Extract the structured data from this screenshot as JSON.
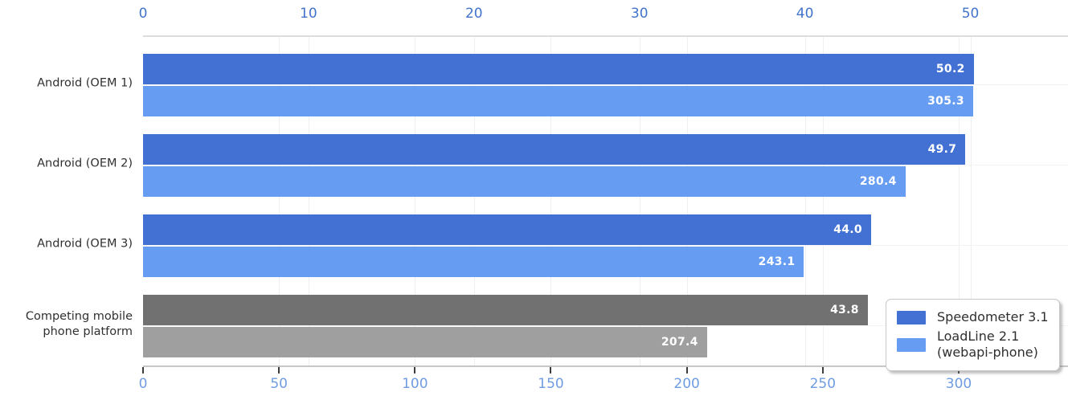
{
  "chart_data": {
    "type": "bar",
    "orientation": "horizontal",
    "title": "",
    "grid": true,
    "legend_position": "lower right",
    "categories": [
      "Android (OEM 1)",
      "Android (OEM 2)",
      "Android (OEM 3)",
      "Competing mobile\nphone platform"
    ],
    "series": [
      {
        "name": "Speedometer 3.1",
        "legend_label": "Speedometer 3.1",
        "axis": "top",
        "values": [
          50.2,
          49.7,
          44.0,
          43.8
        ],
        "value_labels": [
          "50.2",
          "49.7",
          "44.0",
          "43.8"
        ],
        "bar_colors": [
          "#4271d3",
          "#4271d3",
          "#4271d3",
          "#717171"
        ],
        "legend_color": "#4271d3"
      },
      {
        "name": "LoadLine 2.1 (webapi-phone)",
        "legend_label": "LoadLine 2.1\n(webapi-phone)",
        "axis": "bottom",
        "values": [
          305.3,
          280.4,
          243.1,
          207.4
        ],
        "value_labels": [
          "305.3",
          "280.4",
          "243.1",
          "207.4"
        ],
        "bar_colors": [
          "#669cf1",
          "#669cf1",
          "#669cf1",
          "#9f9f9f"
        ],
        "legend_color": "#669cf1"
      }
    ],
    "axes": {
      "top": {
        "ticks": [
          0,
          10,
          20,
          30,
          40,
          50
        ],
        "range": [
          0,
          55.9
        ],
        "label_color": "#4273cb"
      },
      "bottom": {
        "ticks": [
          0,
          50,
          100,
          150,
          200,
          250,
          300
        ],
        "range": [
          0,
          340.2
        ],
        "label_color": "#6f9ce1"
      }
    },
    "colors": {
      "speedometer_blue": "#4271d3",
      "loadline_blue": "#669cf1",
      "competing_dark_gray": "#717171",
      "competing_light_gray": "#9f9f9f",
      "value_label_text": "#ffffff",
      "gridline": "#efeff3",
      "top_axis_line": "#dcdcdc",
      "bottom_axis_line": "#c6c6c6",
      "category_text": "#303030"
    }
  }
}
